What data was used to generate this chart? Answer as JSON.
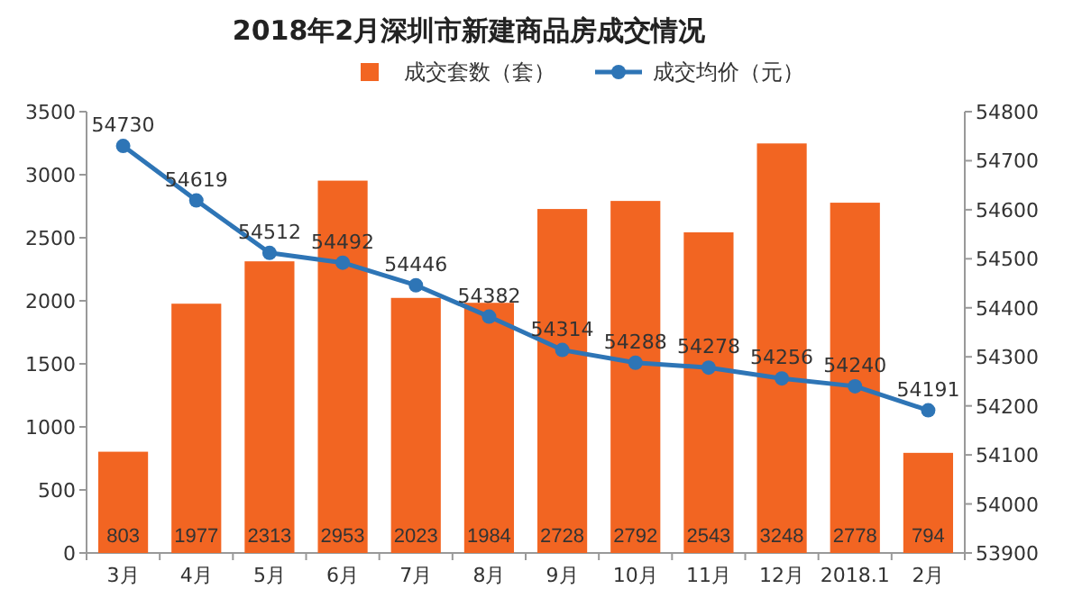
{
  "chart_data": {
    "type": "bar",
    "title": "2018年2月深圳市新建商品房成交情况",
    "categories": [
      "3月",
      "4月",
      "5月",
      "6月",
      "7月",
      "8月",
      "9月",
      "10月",
      "11月",
      "12月",
      "2018.1",
      "2月"
    ],
    "series": [
      {
        "name": "成交套数（套）",
        "color": "#f26522",
        "values": [
          803,
          1977,
          2313,
          2953,
          2023,
          1984,
          2728,
          2792,
          2543,
          3248,
          2778,
          794
        ]
      },
      {
        "name": "成交均价（元）",
        "type": "line",
        "axis": "y2",
        "color": "#2e75b6",
        "marker": "circle",
        "values": [
          54730,
          54619,
          54512,
          54492,
          54446,
          54382,
          54314,
          54288,
          54278,
          54256,
          54240,
          54191
        ]
      }
    ],
    "ylim": [
      0,
      3500
    ],
    "yticks": [
      0,
      500,
      1000,
      1500,
      2000,
      2500,
      3000,
      3500
    ],
    "y2lim": [
      53900,
      54800
    ],
    "y2ticks": [
      53900,
      54000,
      54100,
      54200,
      54300,
      54400,
      54500,
      54600,
      54700,
      54800
    ],
    "legend": "top",
    "data_labels": true
  }
}
